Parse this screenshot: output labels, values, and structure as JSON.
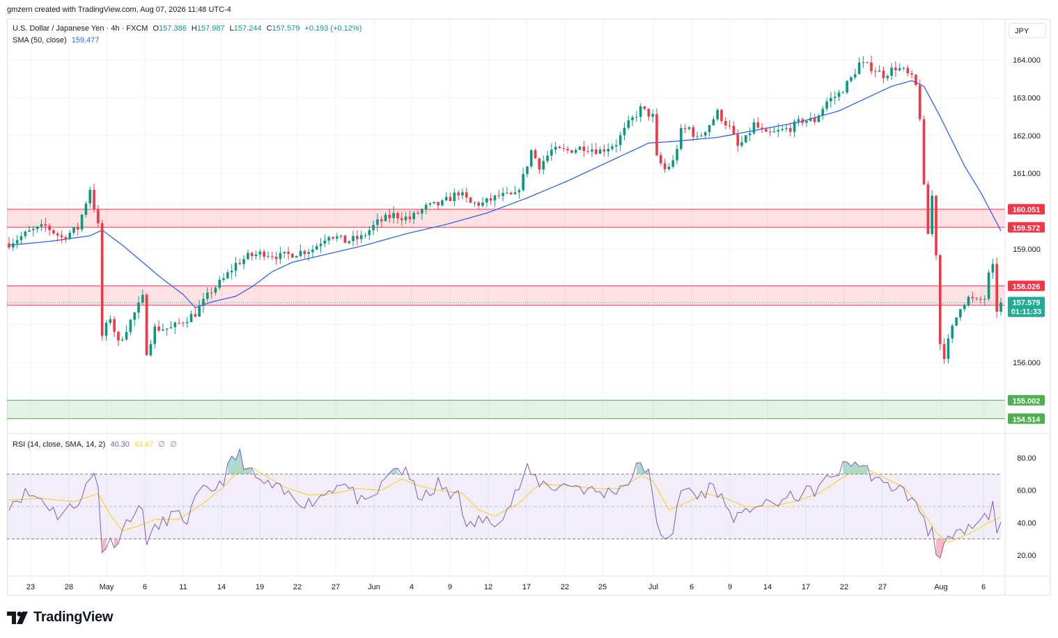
{
  "header": {
    "credit": "gmzern created with TradingView.com, Aug 07, 2026 11:48 UTC-4"
  },
  "legend": {
    "symbol": "U.S. Dollar / Japanese Yen · 4h · FXCM",
    "o_label": "O",
    "o_val": "157.386",
    "h_label": "H",
    "h_val": "157.987",
    "l_label": "L",
    "l_val": "157.244",
    "c_label": "C",
    "c_val": "157.579",
    "change": "+0.193 (+0.12%)",
    "sma_label": "SMA (50, close)",
    "sma_val": "159.477",
    "rsi_label": "RSI (14, close, SMA, 14, 2)",
    "rsi_val": "40.30",
    "rsi_sma_val": "43.67",
    "rsi_extra1": "∅",
    "rsi_extra2": "∅"
  },
  "currency_button": "JPY",
  "brand": "TradingView",
  "colors": {
    "up": "#089981",
    "down": "#f23645",
    "sma": "#2962ff",
    "rsi": "#7e57c2",
    "rsi_sma": "#f7d330",
    "resistance_zone": "#f23645",
    "support_zone": "#4caf50",
    "badge_teal": "#22ab94"
  },
  "chart_data": [
    {
      "type": "candlestick",
      "symbol": "USDJPY",
      "timeframe": "4h",
      "y_ticks": [
        156.0,
        159.0,
        161.0,
        162.0,
        163.0,
        164.0
      ],
      "y_range": [
        154.25,
        164.55
      ],
      "x_ticks": [
        "23",
        "28",
        "May",
        "6",
        "11",
        "14",
        "19",
        "22",
        "27",
        "Jun",
        "4",
        "9",
        "12",
        "17",
        "22",
        "25",
        "Jul",
        "6",
        "9",
        "14",
        "17",
        "22",
        "27",
        "Aug",
        "6"
      ],
      "price_path": [
        {
          "x": 0,
          "y": 159.15
        },
        {
          "x": 5,
          "y": 159.45
        },
        {
          "x": 9,
          "y": 159.6
        },
        {
          "x": 13,
          "y": 159.3
        },
        {
          "x": 17,
          "y": 159.55
        },
        {
          "x": 20,
          "y": 160.6
        },
        {
          "x": 22,
          "y": 159.6
        },
        {
          "x": 23,
          "y": 156.7
        },
        {
          "x": 25,
          "y": 157.2
        },
        {
          "x": 27,
          "y": 156.5
        },
        {
          "x": 30,
          "y": 157.1
        },
        {
          "x": 33,
          "y": 157.7
        },
        {
          "x": 34,
          "y": 156.3
        },
        {
          "x": 36,
          "y": 156.9
        },
        {
          "x": 40,
          "y": 156.9
        },
        {
          "x": 43,
          "y": 157.1
        },
        {
          "x": 46,
          "y": 157.3
        },
        {
          "x": 50,
          "y": 157.9
        },
        {
          "x": 53,
          "y": 158.2
        },
        {
          "x": 56,
          "y": 158.6
        },
        {
          "x": 59,
          "y": 158.8
        },
        {
          "x": 63,
          "y": 158.9
        },
        {
          "x": 67,
          "y": 158.8
        },
        {
          "x": 71,
          "y": 158.9
        },
        {
          "x": 75,
          "y": 159.0
        },
        {
          "x": 79,
          "y": 159.4
        },
        {
          "x": 83,
          "y": 159.2
        },
        {
          "x": 87,
          "y": 159.3
        },
        {
          "x": 91,
          "y": 159.7
        },
        {
          "x": 95,
          "y": 159.9
        },
        {
          "x": 99,
          "y": 159.8
        },
        {
          "x": 103,
          "y": 160.1
        },
        {
          "x": 107,
          "y": 160.2
        },
        {
          "x": 111,
          "y": 160.5
        },
        {
          "x": 114,
          "y": 160.2
        },
        {
          "x": 117,
          "y": 160.2
        },
        {
          "x": 121,
          "y": 160.4
        },
        {
          "x": 125,
          "y": 160.4
        },
        {
          "x": 127,
          "y": 160.9
        },
        {
          "x": 129,
          "y": 161.6
        },
        {
          "x": 131,
          "y": 161.2
        },
        {
          "x": 134,
          "y": 161.6
        },
        {
          "x": 138,
          "y": 161.6
        },
        {
          "x": 142,
          "y": 161.7
        },
        {
          "x": 146,
          "y": 161.6
        },
        {
          "x": 150,
          "y": 161.8
        },
        {
          "x": 153,
          "y": 162.3
        },
        {
          "x": 156,
          "y": 162.7
        },
        {
          "x": 159,
          "y": 162.5
        },
        {
          "x": 160,
          "y": 161.4
        },
        {
          "x": 162,
          "y": 161.1
        },
        {
          "x": 164,
          "y": 161.3
        },
        {
          "x": 166,
          "y": 162.1
        },
        {
          "x": 168,
          "y": 162.2
        },
        {
          "x": 170,
          "y": 161.9
        },
        {
          "x": 173,
          "y": 162.3
        },
        {
          "x": 175,
          "y": 162.6
        },
        {
          "x": 178,
          "y": 162.2
        },
        {
          "x": 180,
          "y": 161.7
        },
        {
          "x": 182,
          "y": 161.9
        },
        {
          "x": 184,
          "y": 162.3
        },
        {
          "x": 187,
          "y": 162.0
        },
        {
          "x": 190,
          "y": 162.1
        },
        {
          "x": 193,
          "y": 162.2
        },
        {
          "x": 196,
          "y": 162.4
        },
        {
          "x": 199,
          "y": 162.4
        },
        {
          "x": 202,
          "y": 162.9
        },
        {
          "x": 205,
          "y": 163.1
        },
        {
          "x": 208,
          "y": 163.5
        },
        {
          "x": 210,
          "y": 163.9
        },
        {
          "x": 213,
          "y": 163.8
        },
        {
          "x": 216,
          "y": 163.6
        },
        {
          "x": 219,
          "y": 163.8
        },
        {
          "x": 221,
          "y": 163.7
        },
        {
          "x": 223,
          "y": 163.5
        },
        {
          "x": 224,
          "y": 163.3
        },
        {
          "x": 225,
          "y": 162.5
        },
        {
          "x": 226,
          "y": 160.6
        },
        {
          "x": 227,
          "y": 159.4
        },
        {
          "x": 228,
          "y": 160.4
        },
        {
          "x": 229,
          "y": 158.9
        },
        {
          "x": 230,
          "y": 156.5
        },
        {
          "x": 231,
          "y": 156.2
        },
        {
          "x": 233,
          "y": 156.9
        },
        {
          "x": 235,
          "y": 157.5
        },
        {
          "x": 237,
          "y": 157.7
        },
        {
          "x": 239,
          "y": 157.6
        },
        {
          "x": 241,
          "y": 157.7
        },
        {
          "x": 242,
          "y": 158.3
        },
        {
          "x": 243,
          "y": 158.5
        },
        {
          "x": 244,
          "y": 157.4
        },
        {
          "x": 245,
          "y": 157.58
        }
      ],
      "sma_path": [
        {
          "x": 0,
          "y": 159.1
        },
        {
          "x": 10,
          "y": 159.2
        },
        {
          "x": 20,
          "y": 159.35
        },
        {
          "x": 23,
          "y": 159.5
        },
        {
          "x": 28,
          "y": 159.1
        },
        {
          "x": 33,
          "y": 158.65
        },
        {
          "x": 38,
          "y": 158.2
        },
        {
          "x": 43,
          "y": 157.8
        },
        {
          "x": 46,
          "y": 157.45
        },
        {
          "x": 50,
          "y": 157.6
        },
        {
          "x": 56,
          "y": 157.75
        },
        {
          "x": 60,
          "y": 158.0
        },
        {
          "x": 65,
          "y": 158.4
        },
        {
          "x": 70,
          "y": 158.65
        },
        {
          "x": 78,
          "y": 158.85
        },
        {
          "x": 88,
          "y": 159.1
        },
        {
          "x": 98,
          "y": 159.4
        },
        {
          "x": 108,
          "y": 159.65
        },
        {
          "x": 118,
          "y": 159.95
        },
        {
          "x": 128,
          "y": 160.35
        },
        {
          "x": 138,
          "y": 160.8
        },
        {
          "x": 148,
          "y": 161.3
        },
        {
          "x": 158,
          "y": 161.8
        },
        {
          "x": 165,
          "y": 161.85
        },
        {
          "x": 175,
          "y": 161.95
        },
        {
          "x": 185,
          "y": 162.15
        },
        {
          "x": 195,
          "y": 162.35
        },
        {
          "x": 205,
          "y": 162.65
        },
        {
          "x": 212,
          "y": 163.0
        },
        {
          "x": 218,
          "y": 163.3
        },
        {
          "x": 223,
          "y": 163.45
        },
        {
          "x": 226,
          "y": 163.3
        },
        {
          "x": 230,
          "y": 162.5
        },
        {
          "x": 236,
          "y": 161.2
        },
        {
          "x": 240,
          "y": 160.5
        },
        {
          "x": 245,
          "y": 159.48
        }
      ],
      "zones": [
        {
          "name": "resistance-upper",
          "from": 159.572,
          "to": 160.051,
          "color": "#f23645"
        },
        {
          "name": "resistance-lower",
          "from": 157.512,
          "to": 158.026,
          "color": "#f23645"
        },
        {
          "name": "support",
          "from": 154.514,
          "to": 155.002,
          "color": "#4caf50"
        }
      ],
      "price_labels": [
        {
          "value": "160.051",
          "price": 160.051,
          "color": "#f23645"
        },
        {
          "value": "159.572",
          "price": 159.572,
          "color": "#f23645"
        },
        {
          "value": "158.026",
          "price": 158.026,
          "color": "#f23645"
        },
        {
          "value": "157.512",
          "price": 157.512,
          "color": "#f23645"
        },
        {
          "value": "155.002",
          "price": 155.002,
          "color": "#4caf50"
        },
        {
          "value": "154.514",
          "price": 154.514,
          "color": "#4caf50"
        }
      ],
      "last_price": {
        "value": "157.579",
        "price": 157.579,
        "countdown": "01:11:33"
      }
    },
    {
      "type": "line",
      "name": "RSI",
      "y_ticks": [
        20,
        40,
        60,
        80
      ],
      "y_range": [
        13,
        87
      ],
      "bands": {
        "upper": 70,
        "middle": 50,
        "lower": 30
      },
      "rsi_path": [
        {
          "x": 0,
          "y": 52
        },
        {
          "x": 4,
          "y": 58
        },
        {
          "x": 8,
          "y": 55
        },
        {
          "x": 12,
          "y": 45
        },
        {
          "x": 16,
          "y": 50
        },
        {
          "x": 19,
          "y": 62
        },
        {
          "x": 21,
          "y": 70
        },
        {
          "x": 22,
          "y": 62
        },
        {
          "x": 23,
          "y": 24
        },
        {
          "x": 25,
          "y": 28
        },
        {
          "x": 27,
          "y": 30
        },
        {
          "x": 30,
          "y": 45
        },
        {
          "x": 33,
          "y": 48
        },
        {
          "x": 34,
          "y": 30
        },
        {
          "x": 36,
          "y": 35
        },
        {
          "x": 40,
          "y": 45
        },
        {
          "x": 44,
          "y": 42
        },
        {
          "x": 47,
          "y": 58
        },
        {
          "x": 50,
          "y": 60
        },
        {
          "x": 53,
          "y": 67
        },
        {
          "x": 55,
          "y": 78
        },
        {
          "x": 57,
          "y": 82
        },
        {
          "x": 59,
          "y": 72
        },
        {
          "x": 62,
          "y": 65
        },
        {
          "x": 65,
          "y": 62
        },
        {
          "x": 68,
          "y": 58
        },
        {
          "x": 71,
          "y": 55
        },
        {
          "x": 74,
          "y": 52
        },
        {
          "x": 78,
          "y": 58
        },
        {
          "x": 82,
          "y": 66
        },
        {
          "x": 85,
          "y": 58
        },
        {
          "x": 88,
          "y": 50
        },
        {
          "x": 92,
          "y": 62
        },
        {
          "x": 95,
          "y": 75
        },
        {
          "x": 98,
          "y": 70
        },
        {
          "x": 101,
          "y": 58
        },
        {
          "x": 104,
          "y": 55
        },
        {
          "x": 106,
          "y": 65
        },
        {
          "x": 109,
          "y": 55
        },
        {
          "x": 111,
          "y": 62
        },
        {
          "x": 113,
          "y": 35
        },
        {
          "x": 116,
          "y": 42
        },
        {
          "x": 119,
          "y": 40
        },
        {
          "x": 123,
          "y": 48
        },
        {
          "x": 126,
          "y": 62
        },
        {
          "x": 128,
          "y": 72
        },
        {
          "x": 131,
          "y": 65
        },
        {
          "x": 135,
          "y": 62
        },
        {
          "x": 139,
          "y": 64
        },
        {
          "x": 143,
          "y": 60
        },
        {
          "x": 147,
          "y": 58
        },
        {
          "x": 151,
          "y": 62
        },
        {
          "x": 154,
          "y": 68
        },
        {
          "x": 156,
          "y": 78
        },
        {
          "x": 158,
          "y": 70
        },
        {
          "x": 160,
          "y": 38
        },
        {
          "x": 162,
          "y": 32
        },
        {
          "x": 164,
          "y": 35
        },
        {
          "x": 166,
          "y": 58
        },
        {
          "x": 168,
          "y": 62
        },
        {
          "x": 170,
          "y": 55
        },
        {
          "x": 173,
          "y": 62
        },
        {
          "x": 175,
          "y": 60
        },
        {
          "x": 178,
          "y": 46
        },
        {
          "x": 181,
          "y": 42
        },
        {
          "x": 184,
          "y": 52
        },
        {
          "x": 187,
          "y": 50
        },
        {
          "x": 190,
          "y": 53
        },
        {
          "x": 193,
          "y": 55
        },
        {
          "x": 196,
          "y": 58
        },
        {
          "x": 199,
          "y": 60
        },
        {
          "x": 202,
          "y": 66
        },
        {
          "x": 205,
          "y": 72
        },
        {
          "x": 208,
          "y": 78
        },
        {
          "x": 210,
          "y": 76
        },
        {
          "x": 213,
          "y": 70
        },
        {
          "x": 216,
          "y": 62
        },
        {
          "x": 219,
          "y": 63
        },
        {
          "x": 222,
          "y": 57
        },
        {
          "x": 224,
          "y": 50
        },
        {
          "x": 226,
          "y": 45
        },
        {
          "x": 227,
          "y": 32
        },
        {
          "x": 228,
          "y": 40
        },
        {
          "x": 229,
          "y": 24
        },
        {
          "x": 230,
          "y": 18
        },
        {
          "x": 231,
          "y": 25
        },
        {
          "x": 233,
          "y": 30
        },
        {
          "x": 236,
          "y": 34
        },
        {
          "x": 239,
          "y": 38
        },
        {
          "x": 242,
          "y": 45
        },
        {
          "x": 243,
          "y": 50
        },
        {
          "x": 244,
          "y": 38
        },
        {
          "x": 245,
          "y": 40.3
        }
      ],
      "rsi_sma_path": [
        {
          "x": 0,
          "y": 54
        },
        {
          "x": 8,
          "y": 55
        },
        {
          "x": 16,
          "y": 53
        },
        {
          "x": 22,
          "y": 58
        },
        {
          "x": 25,
          "y": 45
        },
        {
          "x": 28,
          "y": 35
        },
        {
          "x": 32,
          "y": 38
        },
        {
          "x": 36,
          "y": 42
        },
        {
          "x": 42,
          "y": 42
        },
        {
          "x": 48,
          "y": 52
        },
        {
          "x": 53,
          "y": 62
        },
        {
          "x": 57,
          "y": 73
        },
        {
          "x": 60,
          "y": 74
        },
        {
          "x": 64,
          "y": 68
        },
        {
          "x": 68,
          "y": 62
        },
        {
          "x": 74,
          "y": 57
        },
        {
          "x": 80,
          "y": 58
        },
        {
          "x": 86,
          "y": 61
        },
        {
          "x": 92,
          "y": 60
        },
        {
          "x": 97,
          "y": 67
        },
        {
          "x": 101,
          "y": 63
        },
        {
          "x": 106,
          "y": 60
        },
        {
          "x": 112,
          "y": 58
        },
        {
          "x": 116,
          "y": 48
        },
        {
          "x": 120,
          "y": 44
        },
        {
          "x": 126,
          "y": 52
        },
        {
          "x": 131,
          "y": 64
        },
        {
          "x": 137,
          "y": 63
        },
        {
          "x": 145,
          "y": 61
        },
        {
          "x": 151,
          "y": 61
        },
        {
          "x": 156,
          "y": 69
        },
        {
          "x": 159,
          "y": 66
        },
        {
          "x": 163,
          "y": 48
        },
        {
          "x": 167,
          "y": 52
        },
        {
          "x": 172,
          "y": 58
        },
        {
          "x": 177,
          "y": 55
        },
        {
          "x": 182,
          "y": 50
        },
        {
          "x": 188,
          "y": 50
        },
        {
          "x": 194,
          "y": 53
        },
        {
          "x": 200,
          "y": 58
        },
        {
          "x": 206,
          "y": 68
        },
        {
          "x": 211,
          "y": 74
        },
        {
          "x": 216,
          "y": 68
        },
        {
          "x": 221,
          "y": 62
        },
        {
          "x": 225,
          "y": 50
        },
        {
          "x": 229,
          "y": 34
        },
        {
          "x": 232,
          "y": 28
        },
        {
          "x": 237,
          "y": 33
        },
        {
          "x": 242,
          "y": 40
        },
        {
          "x": 245,
          "y": 43.67
        }
      ]
    }
  ]
}
